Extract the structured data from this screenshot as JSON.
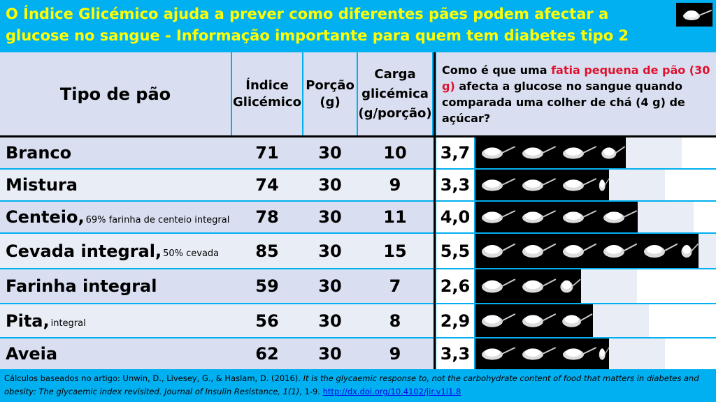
{
  "title": "O Índice Glicémico ajuda a prever como diferentes pães podem afectar a glucose no sangue - Informação importante para quem tem diabetes tipo 2",
  "logo_icon": "sugar-spoon-icon",
  "headers": {
    "type": "Tipo de  pão",
    "gi_line1": "Índice",
    "gi_line2": "Glicémico",
    "portion_line1": "Porção",
    "portion_line2": "(g)",
    "gl_line1": "Carga",
    "gl_line2": "glicémica",
    "gl_line3": "(g/porção)",
    "question_pre": "Como é que uma ",
    "question_highlight": "fatia pequena de pão (30 g)",
    "question_post": " afecta a glucose no sangue quando comparada uma colher de chá (4 g) de açúcar?"
  },
  "colors": {
    "accent": "#00b0f0",
    "title": "#ffff00",
    "highlight": "#e0102d",
    "row_dark": "#d9dff0",
    "row_light": "#e9edf6"
  },
  "rows": [
    {
      "name": "Branco",
      "sub": "",
      "gi": "71",
      "portion": "30",
      "load": "10",
      "ratio": "3,7",
      "teaspoons": 3.7
    },
    {
      "name": "Mistura",
      "sub": "",
      "gi": "74",
      "portion": "30",
      "load": "9",
      "ratio": "3,3",
      "teaspoons": 3.3
    },
    {
      "name": "Centeio,",
      "sub": "69% farinha de centeio integral",
      "gi": "78",
      "portion": "30",
      "load": "11",
      "ratio": "4,0",
      "teaspoons": 4.0
    },
    {
      "name": "Cevada integral,",
      "sub": "50% cevada",
      "gi": "85",
      "portion": "30",
      "load": "15",
      "ratio": "5,5",
      "teaspoons": 5.5
    },
    {
      "name": "Farinha integral",
      "sub": "",
      "gi": "59",
      "portion": "30",
      "load": "7",
      "ratio": "2,6",
      "teaspoons": 2.6
    },
    {
      "name": "Pita,",
      "sub": "integral",
      "gi": "56",
      "portion": "30",
      "load": "8",
      "ratio": "2,9",
      "teaspoons": 2.9
    },
    {
      "name": "Aveia",
      "sub": "",
      "gi": "62",
      "portion": "30",
      "load": "9",
      "ratio": "3,3",
      "teaspoons": 3.3
    }
  ],
  "footer": {
    "prefix": "Cálculos baseados no artigo: Unwin, D., Livesey, G., & Haslam, D. (2016). ",
    "title": "It is the glycaemic response to, not the carbohydrate content of food that matters in diabetes and obesity: The glycaemic index revisited. Journal of Insulin Resistance, 1(1)",
    "suffix": ", 1-9. ",
    "link": "http://dx.doi.org/10.4102/jir.v1i1.8"
  }
}
